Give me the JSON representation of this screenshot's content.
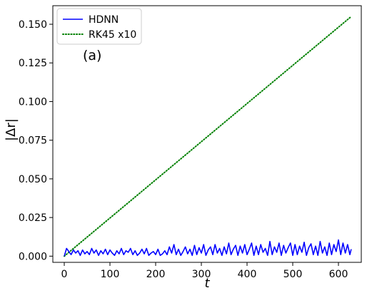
{
  "chart_data": {
    "type": "line",
    "xlabel": "t",
    "ylabel": "|Δr|",
    "xlim": [
      -25,
      650
    ],
    "ylim": [
      -0.004,
      0.162
    ],
    "x_ticks": [
      0,
      100,
      200,
      300,
      400,
      500,
      600
    ],
    "x_tick_labels": [
      "0",
      "100",
      "200",
      "300",
      "400",
      "500",
      "600"
    ],
    "y_ticks": [
      0.0,
      0.025,
      0.05,
      0.075,
      0.1,
      0.125,
      0.15
    ],
    "y_tick_labels": [
      "0.000",
      "0.025",
      "0.050",
      "0.075",
      "0.100",
      "0.125",
      "0.150"
    ],
    "grid": false,
    "legend_position": "top-left",
    "annotation": "(a)",
    "series": [
      {
        "name": "HDNN",
        "style": "solid",
        "color": "#0000ff",
        "x": [
          0,
          5,
          10,
          15,
          20,
          25,
          30,
          35,
          40,
          45,
          50,
          55,
          60,
          65,
          70,
          75,
          80,
          85,
          90,
          95,
          100,
          105,
          110,
          115,
          120,
          125,
          130,
          135,
          140,
          145,
          150,
          155,
          160,
          165,
          170,
          175,
          180,
          185,
          190,
          195,
          200,
          205,
          210,
          215,
          220,
          225,
          230,
          235,
          240,
          245,
          250,
          255,
          260,
          265,
          270,
          275,
          280,
          285,
          290,
          295,
          300,
          305,
          310,
          315,
          320,
          325,
          330,
          335,
          340,
          345,
          350,
          355,
          360,
          365,
          370,
          375,
          380,
          385,
          390,
          395,
          400,
          405,
          410,
          415,
          420,
          425,
          430,
          435,
          440,
          445,
          450,
          455,
          460,
          465,
          470,
          475,
          480,
          485,
          490,
          495,
          500,
          505,
          510,
          515,
          520,
          525,
          530,
          535,
          540,
          545,
          550,
          555,
          560,
          565,
          570,
          575,
          580,
          585,
          590,
          595,
          600,
          605,
          610,
          615,
          620,
          625,
          628
        ],
        "y": [
          0.0,
          0.005,
          0.003,
          0.001,
          0.004,
          0.002,
          0.0035,
          0.0005,
          0.004,
          0.0015,
          0.003,
          0.001,
          0.005,
          0.002,
          0.004,
          0.0005,
          0.0035,
          0.0015,
          0.0045,
          0.001,
          0.004,
          0.002,
          0.0005,
          0.0035,
          0.0015,
          0.005,
          0.001,
          0.0035,
          0.0025,
          0.005,
          0.001,
          0.0035,
          0.0005,
          0.002,
          0.0045,
          0.0015,
          0.005,
          0.0005,
          0.002,
          0.003,
          0.001,
          0.0045,
          0.0005,
          0.0015,
          0.0035,
          0.001,
          0.006,
          0.002,
          0.0075,
          0.001,
          0.0045,
          0.0005,
          0.003,
          0.006,
          0.0015,
          0.0045,
          0.0005,
          0.007,
          0.001,
          0.0055,
          0.002,
          0.0075,
          0.0005,
          0.004,
          0.006,
          0.001,
          0.0075,
          0.002,
          0.005,
          0.0005,
          0.006,
          0.0015,
          0.0085,
          0.001,
          0.0045,
          0.007,
          0.0005,
          0.0065,
          0.002,
          0.0075,
          0.001,
          0.0045,
          0.0085,
          0.0005,
          0.0065,
          0.001,
          0.0075,
          0.0025,
          0.005,
          0.0005,
          0.0095,
          0.001,
          0.006,
          0.0025,
          0.0085,
          0.0005,
          0.007,
          0.002,
          0.0055,
          0.0085,
          0.0005,
          0.0075,
          0.001,
          0.0065,
          0.0025,
          0.009,
          0.0005,
          0.0055,
          0.008,
          0.001,
          0.0065,
          0.0005,
          0.0095,
          0.002,
          0.006,
          0.0005,
          0.0085,
          0.001,
          0.0075,
          0.003,
          0.0105,
          0.001,
          0.0085,
          0.002,
          0.0075,
          0.001,
          0.0045
        ]
      },
      {
        "name": "RK45 x10",
        "style": "dotted",
        "color": "#008000",
        "x": [
          0,
          628
        ],
        "y": [
          0.0,
          0.155
        ]
      }
    ]
  }
}
